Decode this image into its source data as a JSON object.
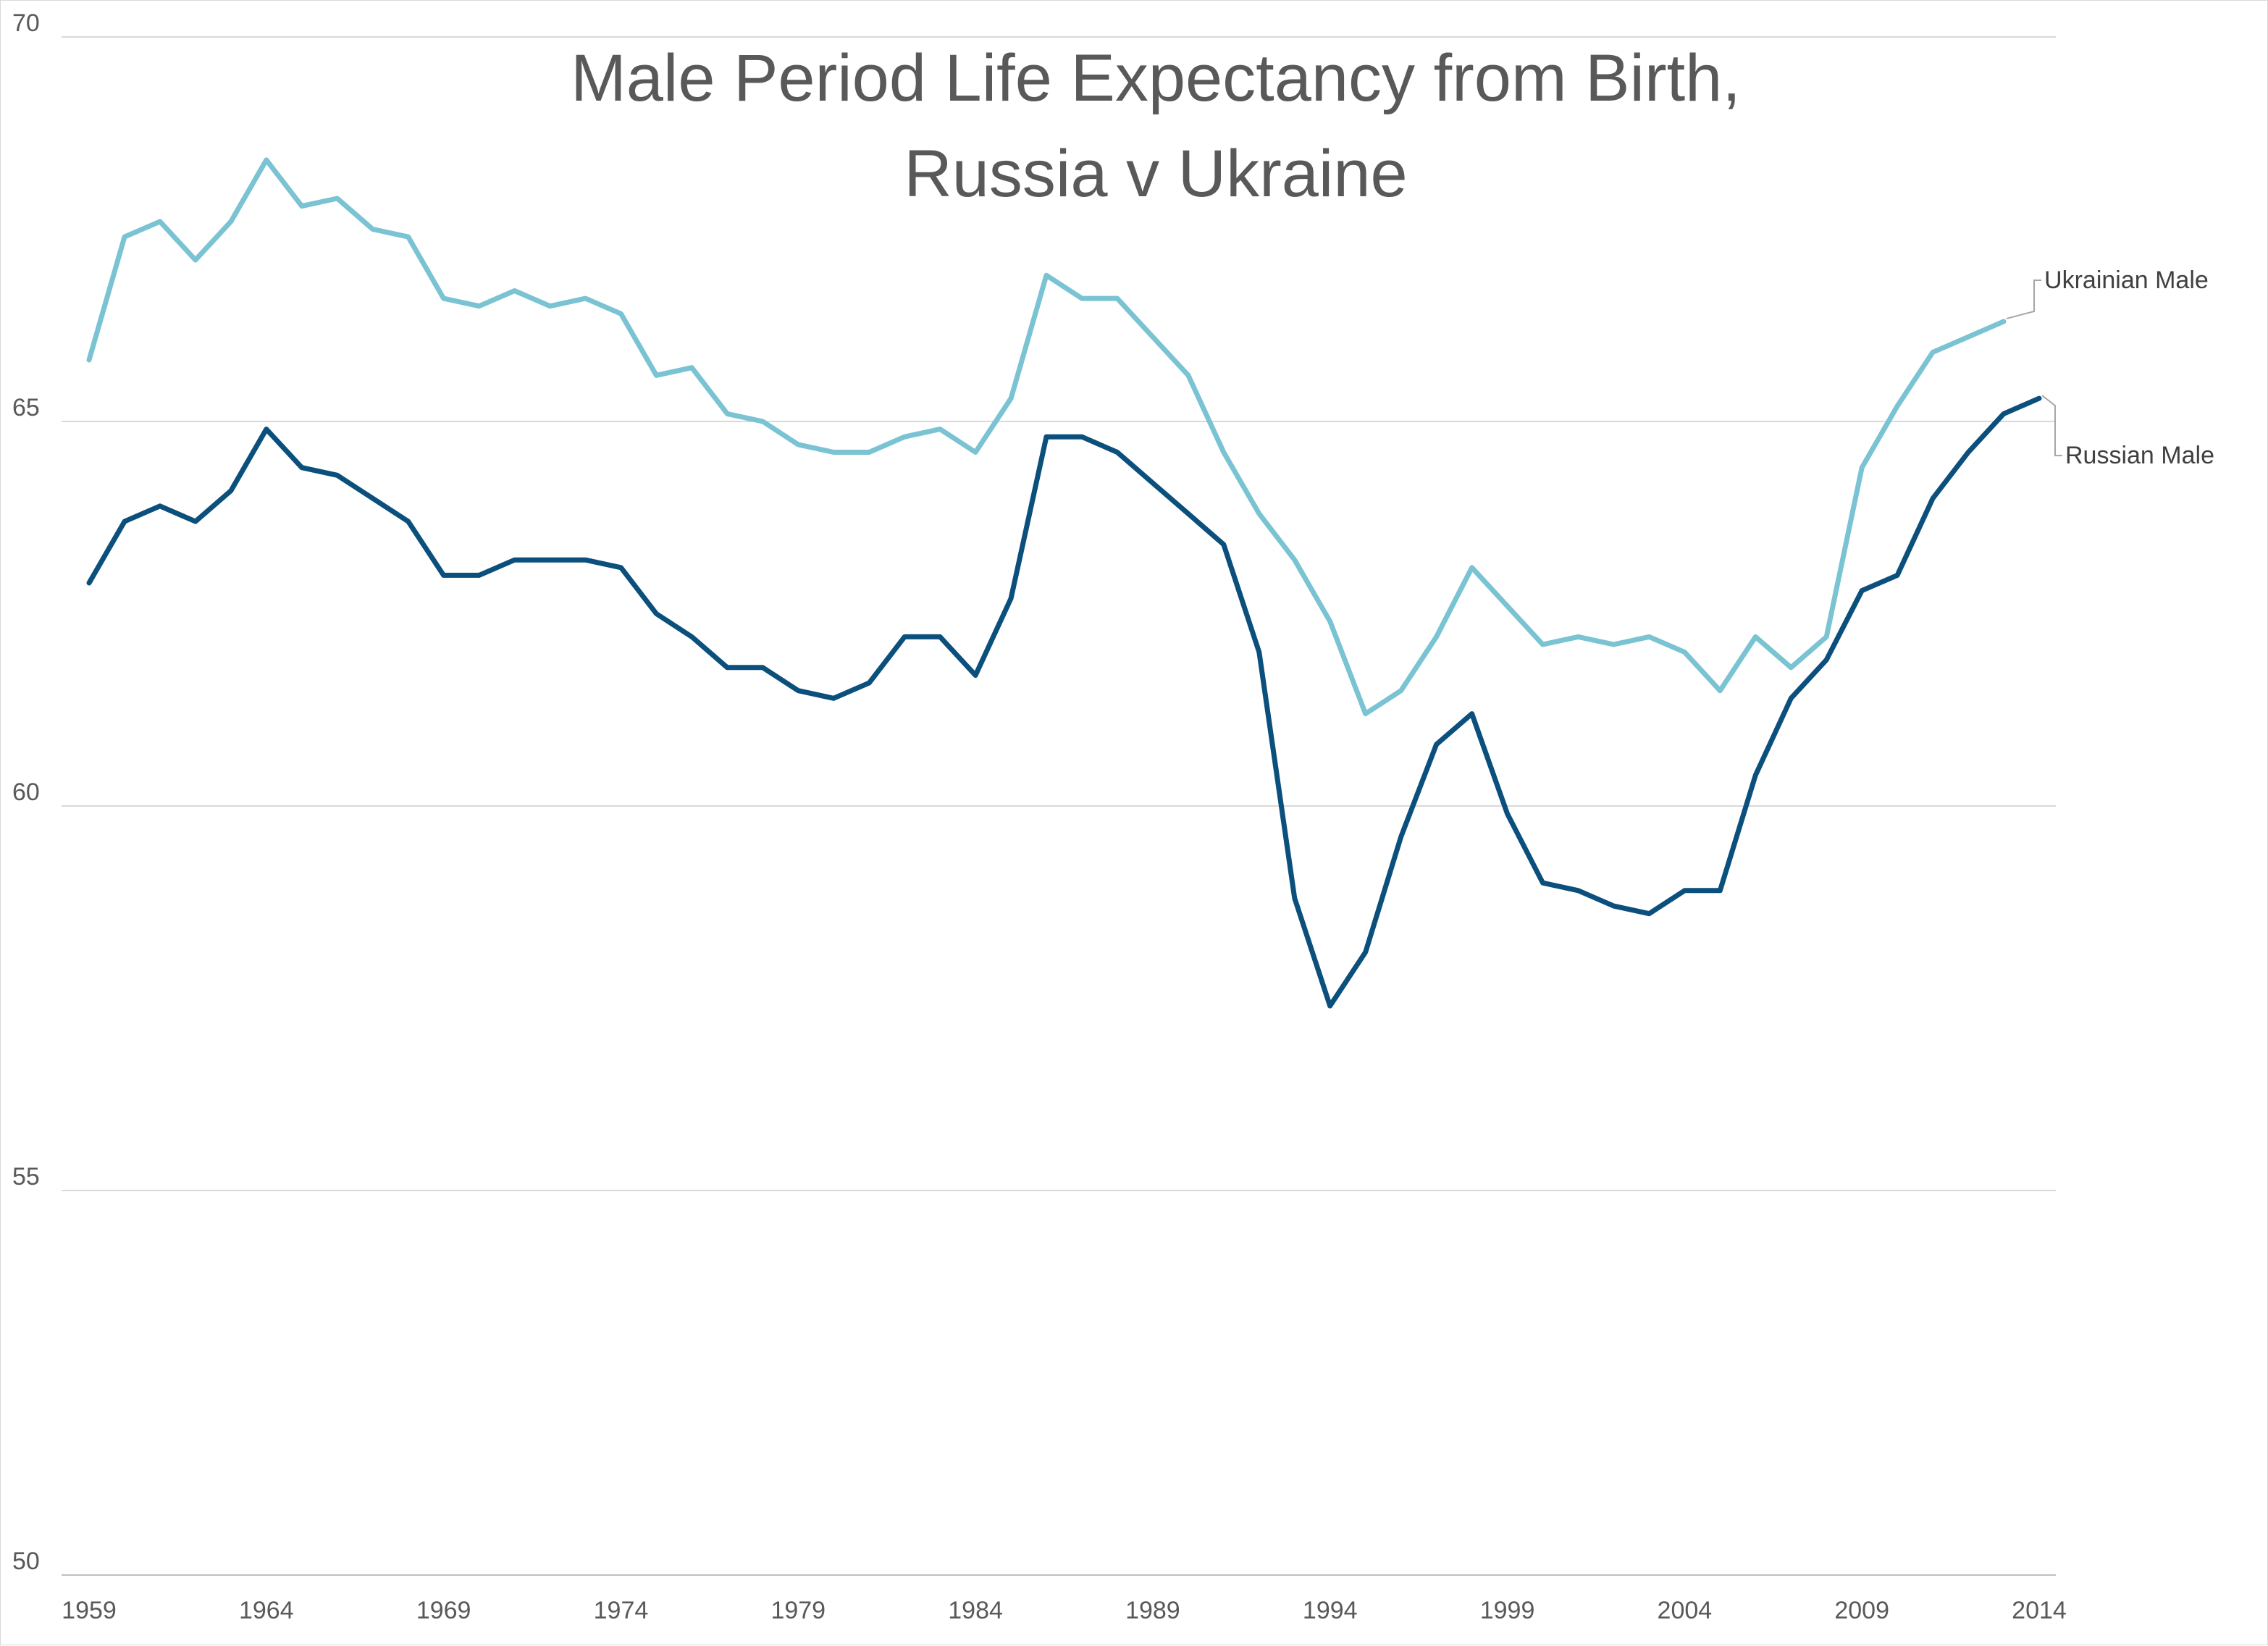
{
  "chart_data": {
    "type": "line",
    "title_lines": [
      "Male Period Life Expectancy from Birth,",
      "Russia v Ukraine"
    ],
    "xlabel": "",
    "ylabel": "",
    "ylim": [
      50,
      70
    ],
    "y_ticks": [
      50,
      55,
      60,
      65,
      70
    ],
    "x_ticks": [
      1959,
      1964,
      1969,
      1974,
      1979,
      1984,
      1989,
      1994,
      1999,
      2004,
      2009,
      2014
    ],
    "xlim": [
      1959,
      2014
    ],
    "grid": true,
    "legend": "inline labels at right end of lines",
    "series": [
      {
        "name": "Ukrainian Male",
        "color": "#7ac3d3",
        "x": [
          1959,
          1960,
          1961,
          1962,
          1963,
          1964,
          1965,
          1966,
          1967,
          1968,
          1969,
          1970,
          1971,
          1972,
          1973,
          1974,
          1975,
          1976,
          1977,
          1978,
          1979,
          1980,
          1981,
          1982,
          1983,
          1984,
          1985,
          1986,
          1987,
          1988,
          1989,
          1990,
          1991,
          1992,
          1993,
          1994,
          1995,
          1996,
          1997,
          1998,
          1999,
          2000,
          2001,
          2002,
          2003,
          2004,
          2005,
          2006,
          2007,
          2008,
          2009,
          2010,
          2011,
          2012,
          2013
        ],
        "values": [
          65.8,
          67.4,
          67.6,
          67.1,
          67.6,
          68.4,
          67.8,
          67.9,
          67.5,
          67.4,
          66.6,
          66.5,
          66.7,
          66.5,
          66.6,
          66.4,
          65.6,
          65.7,
          65.1,
          65.0,
          64.7,
          64.6,
          64.6,
          64.8,
          64.9,
          64.6,
          65.3,
          66.9,
          66.6,
          66.6,
          66.1,
          65.6,
          64.6,
          63.8,
          63.2,
          62.4,
          61.2,
          61.5,
          62.2,
          63.1,
          62.6,
          62.1,
          62.2,
          62.1,
          62.2,
          62.0,
          61.5,
          62.2,
          61.8,
          62.2,
          64.4,
          65.2,
          65.9,
          66.1,
          66.3
        ]
      },
      {
        "name": "Russian Male",
        "color": "#0b4f7c",
        "x": [
          1959,
          1960,
          1961,
          1962,
          1963,
          1964,
          1965,
          1966,
          1967,
          1968,
          1969,
          1970,
          1971,
          1972,
          1973,
          1974,
          1975,
          1976,
          1977,
          1978,
          1979,
          1980,
          1981,
          1982,
          1983,
          1984,
          1985,
          1986,
          1987,
          1988,
          1989,
          1990,
          1991,
          1992,
          1993,
          1994,
          1995,
          1996,
          1997,
          1998,
          1999,
          2000,
          2001,
          2002,
          2003,
          2004,
          2005,
          2006,
          2007,
          2008,
          2009,
          2010,
          2011,
          2012,
          2013,
          2014
        ],
        "values": [
          62.9,
          63.7,
          63.9,
          63.7,
          64.1,
          64.9,
          64.4,
          64.3,
          64.0,
          63.7,
          63.0,
          63.0,
          63.2,
          63.2,
          63.2,
          63.1,
          62.5,
          62.2,
          61.8,
          61.8,
          61.5,
          61.4,
          61.6,
          62.2,
          62.2,
          61.7,
          62.7,
          64.8,
          64.8,
          64.6,
          64.2,
          63.8,
          63.4,
          62.0,
          58.8,
          57.4,
          58.1,
          59.6,
          60.8,
          61.2,
          59.9,
          59.0,
          58.9,
          58.7,
          58.6,
          58.9,
          58.9,
          60.4,
          61.4,
          61.9,
          62.8,
          63.0,
          64.0,
          64.6,
          65.1,
          65.3
        ]
      }
    ]
  }
}
